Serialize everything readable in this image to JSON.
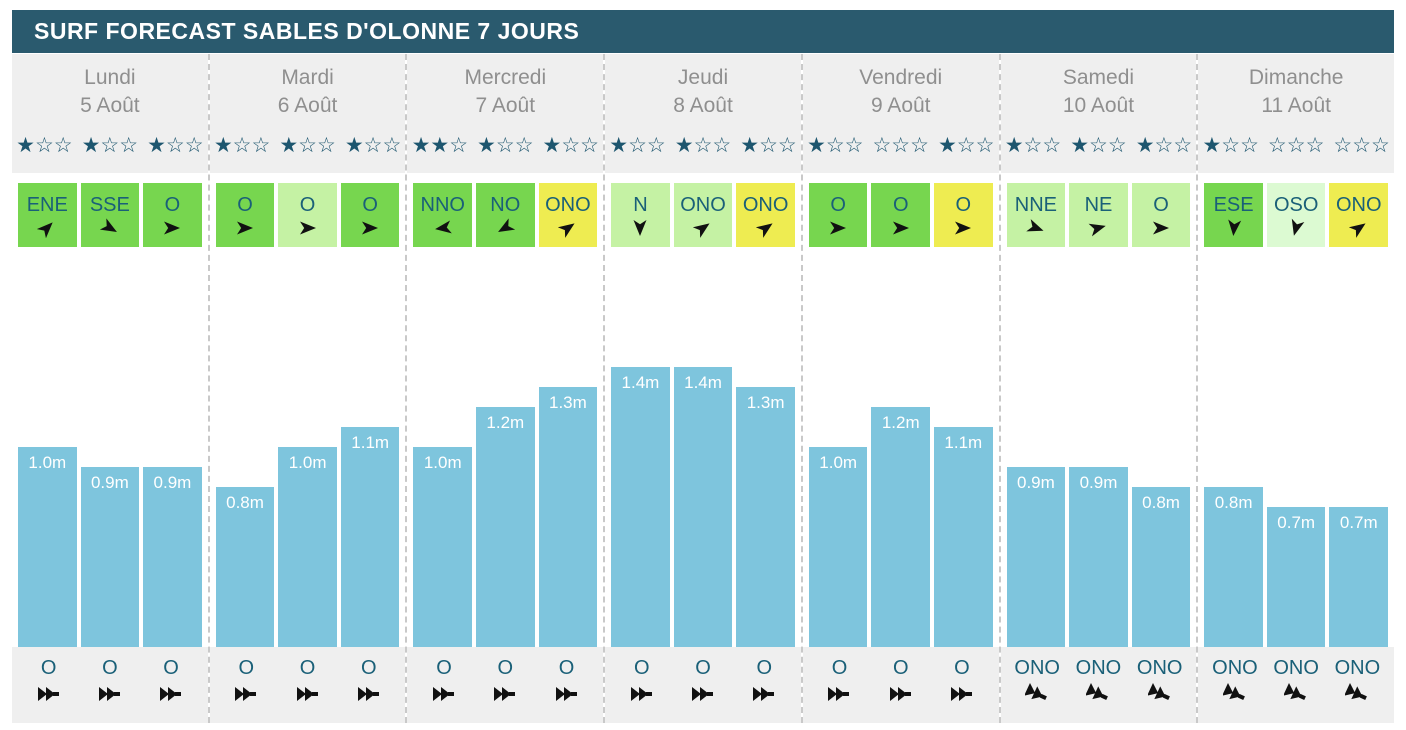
{
  "header": {
    "title": "SURF FORECAST SABLES D'OLONNE 7 JOURS"
  },
  "colors": {
    "header_bg": "#2a5a6e",
    "header_text": "#ffffff",
    "panel_gray": "#efefef",
    "day_label_text": "#8f8f8f",
    "star_teal": "#1d566f",
    "direction_text_teal": "#1a6078",
    "arrow_black": "#111111",
    "wave_bar_blue": "#7ec5dd",
    "wind_green": "#77d64f",
    "wind_light_green": "#c5f2a4",
    "wind_very_light_green": "#dcfad2",
    "wind_yellow": "#eeec51",
    "separator_dash": "#c9c9c9"
  },
  "icons": {
    "wind_arrow": "cursor-arrowhead-icon",
    "swell_arrow": "double-arrowhead-icon",
    "star_filled": "★",
    "star_empty": "☆"
  },
  "stars_per_group": 3,
  "days": [
    {
      "name": "Lundi",
      "date": "5 Août",
      "ratings": [
        1,
        1,
        1
      ],
      "wind": [
        {
          "dir": "ENE",
          "bg": "#77d64f",
          "deg": 45
        },
        {
          "dir": "SSE",
          "bg": "#77d64f",
          "deg": 120
        },
        {
          "dir": "O",
          "bg": "#77d64f",
          "deg": 90
        }
      ],
      "waves_m": [
        1.0,
        0.9,
        0.9
      ],
      "wave_labels": [
        "1.0m",
        "0.9m",
        "0.9m"
      ],
      "swell": [
        {
          "dir": "O",
          "deg": 90
        },
        {
          "dir": "O",
          "deg": 90
        },
        {
          "dir": "O",
          "deg": 90
        }
      ]
    },
    {
      "name": "Mardi",
      "date": "6 Août",
      "ratings": [
        1,
        1,
        1
      ],
      "wind": [
        {
          "dir": "O",
          "bg": "#77d64f",
          "deg": 90
        },
        {
          "dir": "O",
          "bg": "#c5f2a4",
          "deg": 90
        },
        {
          "dir": "O",
          "bg": "#77d64f",
          "deg": 90
        }
      ],
      "waves_m": [
        0.8,
        1.0,
        1.1
      ],
      "wave_labels": [
        "0.8m",
        "1.0m",
        "1.1m"
      ],
      "swell": [
        {
          "dir": "O",
          "deg": 90
        },
        {
          "dir": "O",
          "deg": 90
        },
        {
          "dir": "O",
          "deg": 90
        }
      ]
    },
    {
      "name": "Mercredi",
      "date": "7 Août",
      "ratings": [
        2,
        1,
        1
      ],
      "wind": [
        {
          "dir": "NNO",
          "bg": "#77d64f",
          "deg": 262
        },
        {
          "dir": "NO",
          "bg": "#77d64f",
          "deg": 240
        },
        {
          "dir": "ONO",
          "bg": "#eeec51",
          "deg": 55
        }
      ],
      "waves_m": [
        1.0,
        1.2,
        1.3
      ],
      "wave_labels": [
        "1.0m",
        "1.2m",
        "1.3m"
      ],
      "swell": [
        {
          "dir": "O",
          "deg": 90
        },
        {
          "dir": "O",
          "deg": 90
        },
        {
          "dir": "O",
          "deg": 90
        }
      ]
    },
    {
      "name": "Jeudi",
      "date": "8 Août",
      "ratings": [
        1,
        1,
        1
      ],
      "wind": [
        {
          "dir": "N",
          "bg": "#c5f2a4",
          "deg": 180
        },
        {
          "dir": "ONO",
          "bg": "#c5f2a4",
          "deg": 55
        },
        {
          "dir": "ONO",
          "bg": "#eeec51",
          "deg": 55
        }
      ],
      "waves_m": [
        1.4,
        1.4,
        1.3
      ],
      "wave_labels": [
        "1.4m",
        "1.4m",
        "1.3m"
      ],
      "swell": [
        {
          "dir": "O",
          "deg": 90
        },
        {
          "dir": "O",
          "deg": 90
        },
        {
          "dir": "O",
          "deg": 90
        }
      ]
    },
    {
      "name": "Vendredi",
      "date": "9 Août",
      "ratings": [
        1,
        0,
        1
      ],
      "wind": [
        {
          "dir": "O",
          "bg": "#77d64f",
          "deg": 90
        },
        {
          "dir": "O",
          "bg": "#77d64f",
          "deg": 90
        },
        {
          "dir": "O",
          "bg": "#eeec51",
          "deg": 90
        }
      ],
      "waves_m": [
        1.0,
        1.2,
        1.1
      ],
      "wave_labels": [
        "1.0m",
        "1.2m",
        "1.1m"
      ],
      "swell": [
        {
          "dir": "O",
          "deg": 90
        },
        {
          "dir": "O",
          "deg": 90
        },
        {
          "dir": "O",
          "deg": 90
        }
      ]
    },
    {
      "name": "Samedi",
      "date": "10 Août",
      "ratings": [
        1,
        1,
        1
      ],
      "wind": [
        {
          "dir": "NNE",
          "bg": "#c5f2a4",
          "deg": 110
        },
        {
          "dir": "NE",
          "bg": "#c5f2a4",
          "deg": 75
        },
        {
          "dir": "O",
          "bg": "#c5f2a4",
          "deg": 90
        }
      ],
      "waves_m": [
        0.9,
        0.9,
        0.8
      ],
      "wave_labels": [
        "0.9m",
        "0.9m",
        "0.8m"
      ],
      "swell": [
        {
          "dir": "ONO",
          "deg": 115
        },
        {
          "dir": "ONO",
          "deg": 115
        },
        {
          "dir": "ONO",
          "deg": 115
        }
      ]
    },
    {
      "name": "Dimanche",
      "date": "11 Août",
      "ratings": [
        1,
        0,
        0
      ],
      "wind": [
        {
          "dir": "ESE",
          "bg": "#77d64f",
          "deg": 185
        },
        {
          "dir": "OSO",
          "bg": "#dcfad2",
          "deg": 195
        },
        {
          "dir": "ONO",
          "bg": "#eeec51",
          "deg": 55
        }
      ],
      "waves_m": [
        0.8,
        0.7,
        0.7
      ],
      "wave_labels": [
        "0.8m",
        "0.7m",
        "0.7m"
      ],
      "swell": [
        {
          "dir": "ONO",
          "deg": 115
        },
        {
          "dir": "ONO",
          "deg": 115
        },
        {
          "dir": "ONO",
          "deg": 115
        }
      ]
    }
  ],
  "chart_data": {
    "type": "bar",
    "title": "SURF FORECAST SABLES D'OLONNE 7 JOURS",
    "unit": "m",
    "ylim": [
      0,
      1.5
    ],
    "grid": false,
    "legend": "none",
    "groups": [
      {
        "label": "Lundi 5 Août",
        "values": [
          1.0,
          0.9,
          0.9
        ]
      },
      {
        "label": "Mardi 6 Août",
        "values": [
          0.8,
          1.0,
          1.1
        ]
      },
      {
        "label": "Mercredi 7 Août",
        "values": [
          1.0,
          1.2,
          1.3
        ]
      },
      {
        "label": "Jeudi 8 Août",
        "values": [
          1.4,
          1.4,
          1.3
        ]
      },
      {
        "label": "Vendredi 9 Août",
        "values": [
          1.0,
          1.2,
          1.1
        ]
      },
      {
        "label": "Samedi 10 Août",
        "values": [
          0.9,
          0.9,
          0.8
        ]
      },
      {
        "label": "Dimanche 11 Août",
        "values": [
          0.8,
          0.7,
          0.7
        ]
      }
    ],
    "bar_labels": [
      "1.0m",
      "0.9m",
      "0.9m",
      "0.8m",
      "1.0m",
      "1.1m",
      "1.0m",
      "1.2m",
      "1.3m",
      "1.4m",
      "1.4m",
      "1.3m",
      "1.0m",
      "1.2m",
      "1.1m",
      "0.9m",
      "0.9m",
      "0.8m",
      "0.8m",
      "0.7m",
      "0.7m"
    ]
  }
}
